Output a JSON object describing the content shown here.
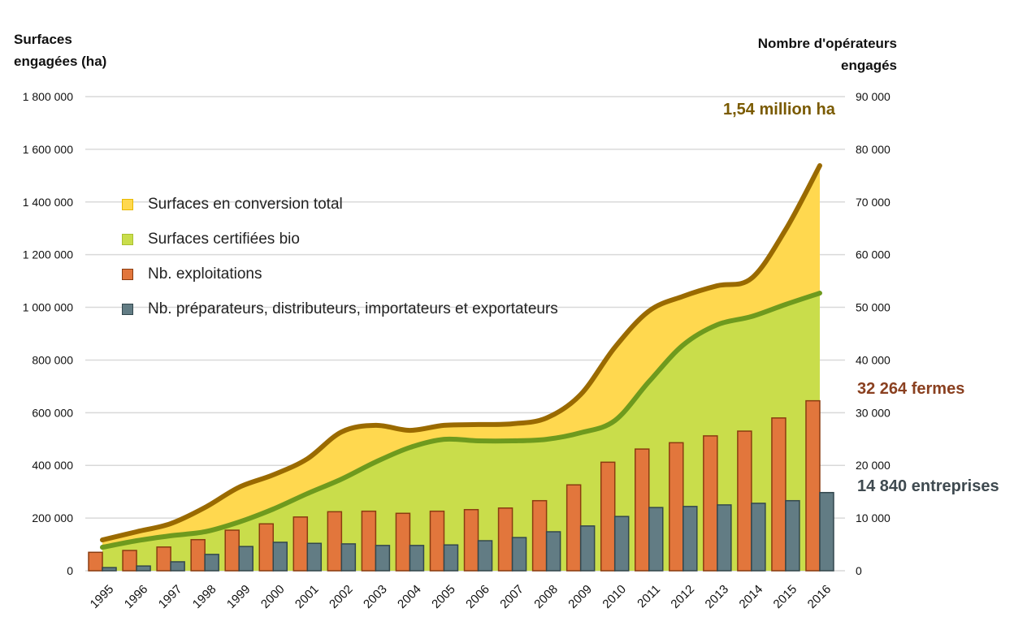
{
  "chart_data": {
    "type": "area+bar",
    "title": "",
    "left_axis_title_line1": "Surfaces",
    "left_axis_title_line2": "engagées (ha)",
    "right_axis_title_line1": "Nombre d'opérateurs",
    "right_axis_title_line2": "engagés",
    "categories": [
      "1995",
      "1996",
      "1997",
      "1998",
      "1999",
      "2000",
      "2001",
      "2002",
      "2003",
      "2004",
      "2005",
      "2006",
      "2007",
      "2008",
      "2009",
      "2010",
      "2011",
      "2012",
      "2013",
      "2014",
      "2015",
      "2016"
    ],
    "left_axis": {
      "min": 0,
      "max": 1800000,
      "ticks": [
        0,
        200000,
        400000,
        600000,
        800000,
        1000000,
        1200000,
        1400000,
        1600000,
        1800000
      ],
      "tick_labels": [
        "0",
        "200 000",
        "400 000",
        "600 000",
        "800 000",
        "1 000 000",
        "1 200 000",
        "1 400 000",
        "1 600 000",
        "1 800 000"
      ]
    },
    "right_axis": {
      "min": 0,
      "max": 90000,
      "ticks": [
        0,
        10000,
        20000,
        30000,
        40000,
        50000,
        60000,
        70000,
        80000,
        90000
      ],
      "tick_labels": [
        "0",
        "10 000",
        "20 000",
        "30 000",
        "40 000",
        "50 000",
        "60 000",
        "70 000",
        "80 000",
        "90 000"
      ]
    },
    "grid": true,
    "legend_position": "top-left",
    "series": [
      {
        "name": "Surfaces en conversion total",
        "kind": "area",
        "axis": "left",
        "color": "#FFD84F",
        "line_color": "#9A6A00",
        "values": [
          117000,
          148000,
          179000,
          240000,
          317000,
          364000,
          425000,
          527000,
          552000,
          533000,
          552000,
          555000,
          558000,
          580000,
          669000,
          848000,
          986000,
          1042000,
          1082000,
          1110000,
          1295000,
          1538000
        ]
      },
      {
        "name": "Surfaces certifiées bio",
        "kind": "area",
        "axis": "left",
        "color": "#C9DD4B",
        "line_color": "#6E9A1E",
        "values": [
          89000,
          114000,
          133000,
          148000,
          185000,
          234000,
          293000,
          348000,
          413000,
          468000,
          499000,
          493000,
          493000,
          499000,
          524000,
          570000,
          718000,
          857000,
          934000,
          965000,
          1011000,
          1054000
        ]
      },
      {
        "name": "Nb. exploitations",
        "kind": "bar",
        "axis": "right",
        "color": "#E2763C",
        "border": "#8A3C10",
        "values": [
          3500,
          3850,
          4500,
          5900,
          7700,
          8900,
          10200,
          11200,
          11300,
          10900,
          11300,
          11600,
          11900,
          13300,
          16300,
          20600,
          23100,
          24300,
          25600,
          26500,
          29000,
          32264
        ]
      },
      {
        "name": "Nb. préparateurs, distributeurs, importateurs et exportateurs",
        "kind": "bar",
        "axis": "right",
        "color": "#627C84",
        "border": "#33474D",
        "values": [
          600,
          900,
          1700,
          3100,
          4600,
          5400,
          5200,
          5100,
          4800,
          4800,
          4900,
          5700,
          6300,
          7400,
          8500,
          10300,
          12000,
          12200,
          12500,
          12800,
          13300,
          14840
        ]
      }
    ],
    "annotations": [
      {
        "text": "1,54 million ha",
        "color": "#7A5A00"
      },
      {
        "text": "32 264 fermes",
        "color": "#8A4020"
      },
      {
        "text": "14 840 entreprises",
        "color": "#3F4A50"
      }
    ]
  }
}
